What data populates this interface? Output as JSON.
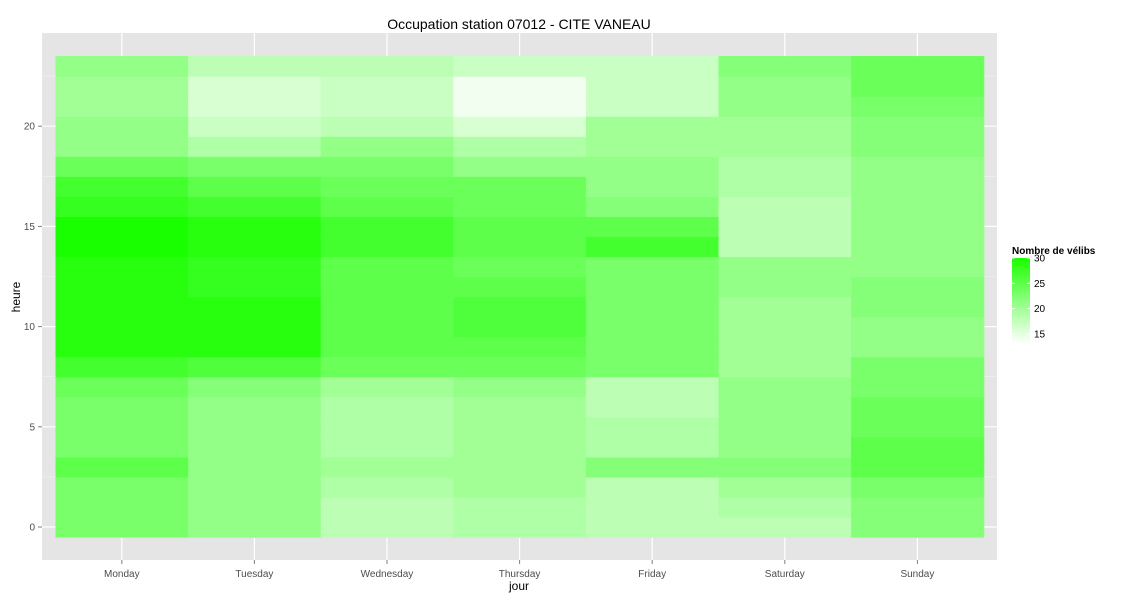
{
  "chart_data": {
    "type": "heatmap",
    "title": "Occupation station 07012 - CITE VANEAU",
    "xlabel": "jour",
    "ylabel": "heure",
    "x_categories": [
      "Monday",
      "Tuesday",
      "Wednesday",
      "Thursday",
      "Friday",
      "Saturday",
      "Sunday"
    ],
    "y_range": [
      0,
      23
    ],
    "y_ticks": [
      0,
      5,
      10,
      15,
      20
    ],
    "grid": true,
    "legend": {
      "title": "Nombre de vélibs",
      "position": "right",
      "ticks": [
        15,
        20,
        25,
        30
      ],
      "min_value": 13,
      "max_value": 30,
      "low_color": "#ffffff",
      "high_color": "#1aff00"
    },
    "panel_background": "#e5e5e5",
    "values_by_day": {
      "Monday": [
        23,
        23,
        23,
        25,
        23,
        23,
        23,
        24,
        27,
        29,
        29,
        29,
        29,
        29,
        30,
        30,
        28,
        27,
        24,
        21,
        21,
        20,
        20,
        21
      ],
      "Tuesday": [
        21,
        21,
        21,
        21,
        21,
        21,
        21,
        22,
        26,
        29,
        29,
        29,
        28,
        28,
        29,
        29,
        27,
        25,
        23,
        19,
        17,
        16,
        16,
        18
      ],
      "Wednesday": [
        18,
        18,
        19,
        20,
        19,
        19,
        19,
        20,
        24,
        25,
        25,
        25,
        25,
        25,
        27,
        27,
        25,
        24,
        23,
        21,
        18,
        17,
        17,
        18
      ],
      "Thursday": [
        19,
        19,
        20,
        20,
        20,
        20,
        20,
        21,
        24,
        25,
        26,
        26,
        25,
        24,
        25,
        25,
        24,
        24,
        21,
        19,
        16,
        14,
        14,
        17
      ],
      "Friday": [
        18,
        18,
        18,
        22,
        19,
        19,
        18,
        18,
        23,
        23,
        23,
        23,
        23,
        23,
        27,
        25,
        22,
        21,
        21,
        20,
        20,
        17,
        17,
        17
      ],
      "Saturday": [
        18,
        19,
        20,
        22,
        21,
        21,
        21,
        21,
        20,
        20,
        20,
        20,
        21,
        21,
        18,
        18,
        18,
        19,
        19,
        20,
        20,
        21,
        21,
        22
      ],
      "Sunday": [
        22,
        22,
        23,
        25,
        25,
        24,
        24,
        23,
        23,
        21,
        21,
        22,
        22,
        21,
        21,
        21,
        21,
        21,
        21,
        22,
        22,
        23,
        24,
        24
      ]
    }
  }
}
